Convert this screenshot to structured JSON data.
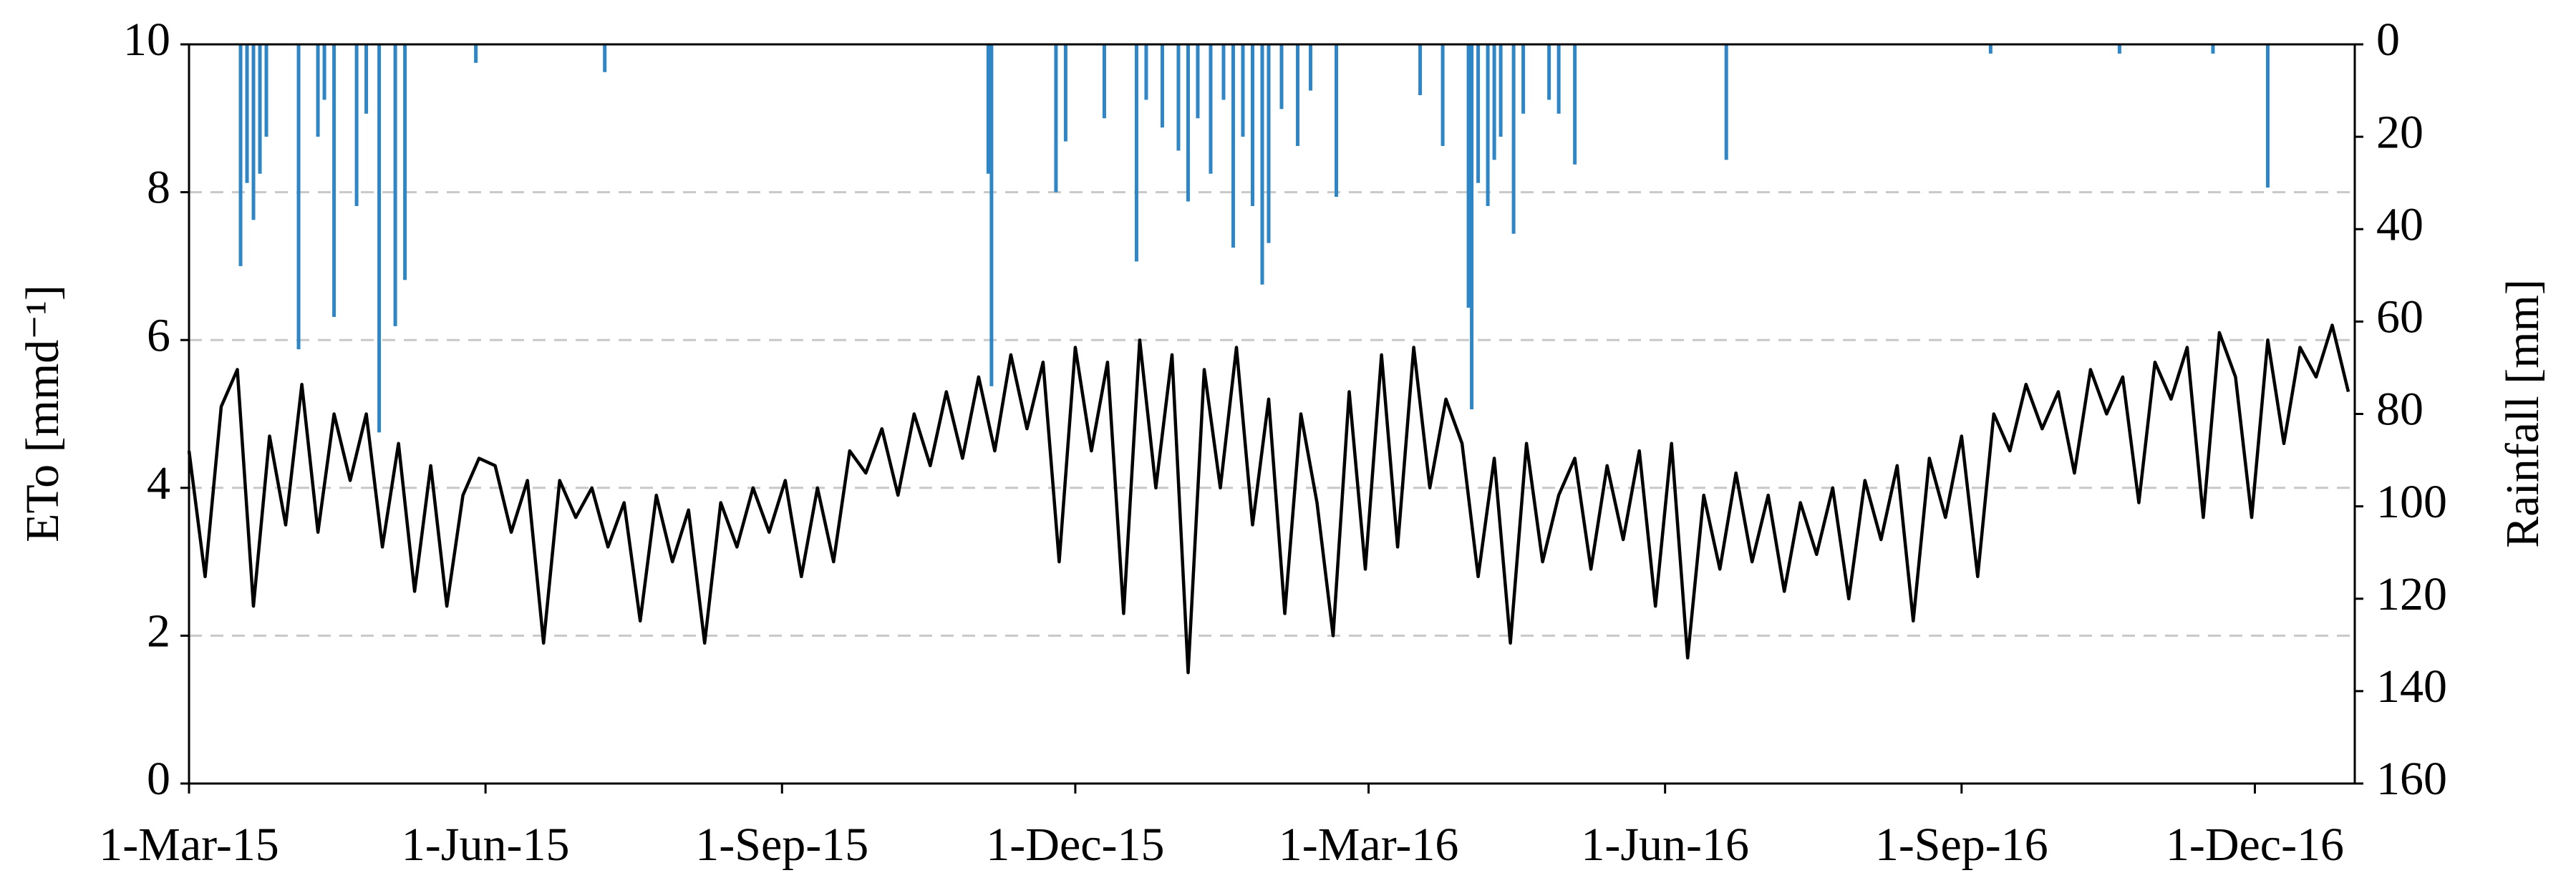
{
  "chart_data": {
    "type": "combo",
    "y_label": "ETo [mmd⁻¹]",
    "y2_label": "Rainfall [mm]",
    "xlim": [
      "2015-03-01",
      "2016-12-31"
    ],
    "xticks": [
      {
        "value": "2015-03-01",
        "label": "1-Mar-15"
      },
      {
        "value": "2015-06-01",
        "label": "1-Jun-15"
      },
      {
        "value": "2015-09-01",
        "label": "1-Sep-15"
      },
      {
        "value": "2015-12-01",
        "label": "1-Dec-15"
      },
      {
        "value": "2016-03-01",
        "label": "1-Mar-16"
      },
      {
        "value": "2016-06-01",
        "label": "1-Jun-16"
      },
      {
        "value": "2016-09-01",
        "label": "1-Sep-16"
      },
      {
        "value": "2016-12-01",
        "label": "1-Dec-16"
      }
    ],
    "ylim": [
      0,
      10
    ],
    "yticks": [
      0,
      2,
      4,
      6,
      8,
      10
    ],
    "y2lim": [
      160,
      0
    ],
    "y2ticks": [
      0,
      20,
      40,
      60,
      80,
      100,
      120,
      140,
      160
    ],
    "grid": true,
    "series": [
      {
        "type": "line",
        "color": "#000000",
        "x": [
          "2015-03-01",
          "2015-03-06",
          "2015-03-11",
          "2015-03-16",
          "2015-03-21",
          "2015-03-26",
          "2015-03-31",
          "2015-04-05",
          "2015-04-10",
          "2015-04-15",
          "2015-04-20",
          "2015-04-25",
          "2015-04-30",
          "2015-05-05",
          "2015-05-10",
          "2015-05-15",
          "2015-05-20",
          "2015-05-25",
          "2015-05-30",
          "2015-06-04",
          "2015-06-09",
          "2015-06-14",
          "2015-06-19",
          "2015-06-24",
          "2015-06-29",
          "2015-07-04",
          "2015-07-09",
          "2015-07-14",
          "2015-07-19",
          "2015-07-24",
          "2015-07-29",
          "2015-08-03",
          "2015-08-08",
          "2015-08-13",
          "2015-08-18",
          "2015-08-23",
          "2015-08-28",
          "2015-09-02",
          "2015-09-07",
          "2015-09-12",
          "2015-09-17",
          "2015-09-22",
          "2015-09-27",
          "2015-10-02",
          "2015-10-07",
          "2015-10-12",
          "2015-10-17",
          "2015-10-22",
          "2015-10-27",
          "2015-11-01",
          "2015-11-06",
          "2015-11-11",
          "2015-11-16",
          "2015-11-21",
          "2015-11-26",
          "2015-12-01",
          "2015-12-06",
          "2015-12-11",
          "2015-12-16",
          "2015-12-21",
          "2015-12-26",
          "2015-12-31",
          "2016-01-05",
          "2016-01-10",
          "2016-01-15",
          "2016-01-20",
          "2016-01-25",
          "2016-01-30",
          "2016-02-04",
          "2016-02-09",
          "2016-02-14",
          "2016-02-19",
          "2016-02-24",
          "2016-02-29",
          "2016-03-05",
          "2016-03-10",
          "2016-03-15",
          "2016-03-20",
          "2016-03-25",
          "2016-03-30",
          "2016-04-04",
          "2016-04-09",
          "2016-04-14",
          "2016-04-19",
          "2016-04-24",
          "2016-04-29",
          "2016-05-04",
          "2016-05-09",
          "2016-05-14",
          "2016-05-19",
          "2016-05-24",
          "2016-05-29",
          "2016-06-03",
          "2016-06-08",
          "2016-06-13",
          "2016-06-18",
          "2016-06-23",
          "2016-06-28",
          "2016-07-03",
          "2016-07-08",
          "2016-07-13",
          "2016-07-18",
          "2016-07-23",
          "2016-07-28",
          "2016-08-02",
          "2016-08-07",
          "2016-08-12",
          "2016-08-17",
          "2016-08-22",
          "2016-08-27",
          "2016-09-01",
          "2016-09-06",
          "2016-09-11",
          "2016-09-16",
          "2016-09-21",
          "2016-09-26",
          "2016-10-01",
          "2016-10-06",
          "2016-10-11",
          "2016-10-16",
          "2016-10-21",
          "2016-10-26",
          "2016-10-31",
          "2016-11-05",
          "2016-11-10",
          "2016-11-15",
          "2016-11-20",
          "2016-11-25",
          "2016-11-30",
          "2016-12-05",
          "2016-12-10",
          "2016-12-15",
          "2016-12-20",
          "2016-12-25",
          "2016-12-30"
        ],
        "values": [
          4.5,
          2.8,
          5.1,
          5.6,
          2.4,
          4.7,
          3.5,
          5.4,
          3.4,
          5.0,
          4.1,
          5.0,
          3.2,
          4.6,
          2.6,
          4.3,
          2.4,
          3.9,
          4.4,
          4.3,
          3.4,
          4.1,
          1.9,
          4.1,
          3.6,
          4.0,
          3.2,
          3.8,
          2.2,
          3.9,
          3.0,
          3.7,
          1.9,
          3.8,
          3.2,
          4.0,
          3.4,
          4.1,
          2.8,
          4.0,
          3.0,
          4.5,
          4.2,
          4.8,
          3.9,
          5.0,
          4.3,
          5.3,
          4.4,
          5.5,
          4.5,
          5.8,
          4.8,
          5.7,
          3.0,
          5.9,
          4.5,
          5.7,
          2.3,
          6.0,
          4.0,
          5.8,
          1.5,
          5.6,
          4.0,
          5.9,
          3.5,
          5.2,
          2.3,
          5.0,
          3.8,
          2.0,
          5.3,
          2.9,
          5.8,
          3.2,
          5.9,
          4.0,
          5.2,
          4.6,
          2.8,
          4.4,
          1.9,
          4.6,
          3.0,
          3.9,
          4.4,
          2.9,
          4.3,
          3.3,
          4.5,
          2.4,
          4.6,
          1.7,
          3.9,
          2.9,
          4.2,
          3.0,
          3.9,
          2.6,
          3.8,
          3.1,
          4.0,
          2.5,
          4.1,
          3.3,
          4.3,
          2.2,
          4.4,
          3.6,
          4.7,
          2.8,
          5.0,
          4.5,
          5.4,
          4.8,
          5.3,
          4.2,
          5.6,
          5.0,
          5.5,
          3.8,
          5.7,
          5.2,
          5.9,
          3.6,
          6.1,
          5.5,
          3.6,
          6.0,
          4.6,
          5.9,
          5.5,
          6.2,
          5.3
        ]
      },
      {
        "type": "bar",
        "axis": "y2",
        "color": "#2e86c6",
        "x": [
          "2015-03-17",
          "2015-03-19",
          "2015-03-21",
          "2015-03-23",
          "2015-03-25",
          "2015-04-04",
          "2015-04-10",
          "2015-04-12",
          "2015-04-15",
          "2015-04-22",
          "2015-04-25",
          "2015-04-29",
          "2015-05-04",
          "2015-05-07",
          "2015-05-29",
          "2015-07-08",
          "2015-11-04",
          "2015-11-05",
          "2015-11-25",
          "2015-11-28",
          "2015-12-10",
          "2015-12-20",
          "2015-12-23",
          "2015-12-28",
          "2016-01-02",
          "2016-01-05",
          "2016-01-08",
          "2016-01-12",
          "2016-01-16",
          "2016-01-19",
          "2016-01-22",
          "2016-01-25",
          "2016-01-28",
          "2016-01-30",
          "2016-02-03",
          "2016-02-08",
          "2016-02-12",
          "2016-02-20",
          "2016-03-17",
          "2016-03-24",
          "2016-04-01",
          "2016-04-02",
          "2016-04-04",
          "2016-04-07",
          "2016-04-09",
          "2016-04-11",
          "2016-04-15",
          "2016-04-18",
          "2016-04-26",
          "2016-04-29",
          "2016-05-04",
          "2016-06-20",
          "2016-09-10",
          "2016-10-20",
          "2016-11-18",
          "2016-12-05"
        ],
        "values": [
          48,
          30,
          38,
          28,
          20,
          66,
          20,
          12,
          59,
          35,
          15,
          84,
          61,
          51,
          4,
          6,
          28,
          74,
          32,
          21,
          16,
          47,
          12,
          18,
          23,
          34,
          16,
          28,
          12,
          44,
          20,
          35,
          52,
          43,
          14,
          22,
          10,
          33,
          11,
          22,
          57,
          79,
          30,
          35,
          25,
          20,
          41,
          15,
          12,
          15,
          26,
          25,
          2,
          2,
          2,
          31
        ]
      }
    ]
  }
}
